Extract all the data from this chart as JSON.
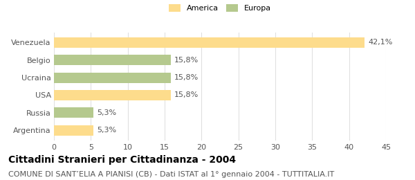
{
  "categories": [
    "Venezuela",
    "Belgio",
    "Ucraina",
    "USA",
    "Russia",
    "Argentina"
  ],
  "values": [
    42.1,
    15.8,
    15.8,
    15.8,
    5.3,
    5.3
  ],
  "colors": [
    "#FDDC8C",
    "#B5C98E",
    "#B5C98E",
    "#FDDC8C",
    "#B5C98E",
    "#FDDC8C"
  ],
  "labels": [
    "42,1%",
    "15,8%",
    "15,8%",
    "15,8%",
    "5,3%",
    "5,3%"
  ],
  "legend_labels": [
    "America",
    "Europa"
  ],
  "legend_colors": [
    "#FDDC8C",
    "#B5C98E"
  ],
  "xlim": [
    0,
    45
  ],
  "xticks": [
    0,
    5,
    10,
    15,
    20,
    25,
    30,
    35,
    40,
    45
  ],
  "title": "Cittadini Stranieri per Cittadinanza - 2004",
  "subtitle": "COMUNE DI SANT’ELIA A PIANISI (CB) - Dati ISTAT al 1° gennaio 2004 - TUTTITALIA.IT",
  "bg_color": "#ffffff",
  "grid_color": "#e0e0e0",
  "bar_height": 0.6,
  "title_fontsize": 10,
  "subtitle_fontsize": 8,
  "label_fontsize": 8,
  "tick_fontsize": 8,
  "ylabel_fontsize": 8
}
